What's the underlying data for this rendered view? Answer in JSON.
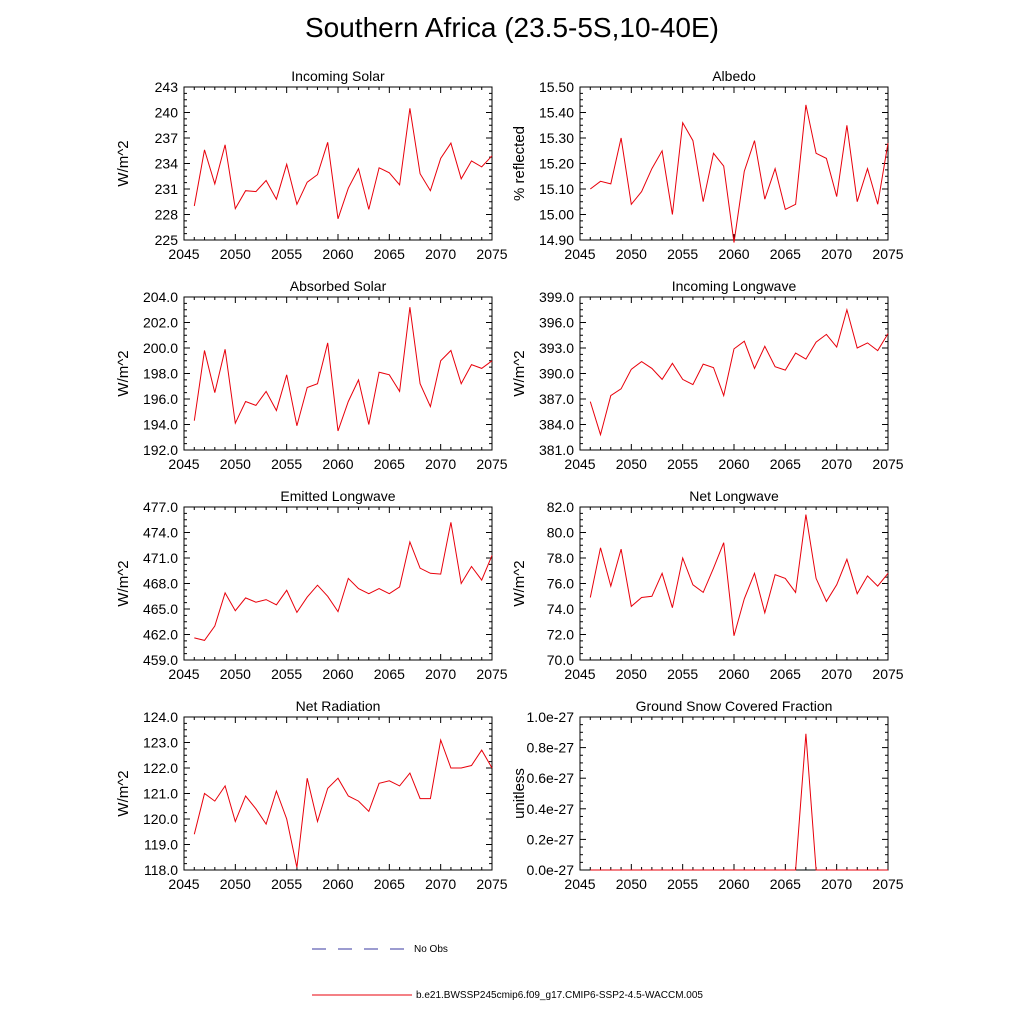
{
  "title": "Southern Africa (23.5-5S,10-40E)",
  "colors": {
    "model": "#e8000b",
    "obs": "#3a3aa0",
    "axis": "#000000"
  },
  "legend": {
    "obs_label": "No Obs",
    "model_label": "b.e21.BWSSP245cmip6.f09_g17.CMIP6-SSP2-4.5-WACCM.005"
  },
  "chart_data": [
    {
      "type": "line",
      "title": "Incoming Solar",
      "xlabel": "",
      "ylabel": "W/m^2",
      "xlim": [
        2045,
        2075
      ],
      "xticks": [
        2045,
        2050,
        2055,
        2060,
        2065,
        2070,
        2075
      ],
      "ylim": [
        225,
        243
      ],
      "yticks": [
        225,
        228,
        231,
        234,
        237,
        240,
        243
      ],
      "ydecimals": 0,
      "x": [
        2046,
        2047,
        2048,
        2049,
        2050,
        2051,
        2052,
        2053,
        2054,
        2055,
        2056,
        2057,
        2058,
        2059,
        2060,
        2061,
        2062,
        2063,
        2064,
        2065,
        2066,
        2067,
        2068,
        2069,
        2070,
        2071,
        2072,
        2073,
        2074,
        2075
      ],
      "series": [
        {
          "name": "b.e21.BWSSP245cmip6.f09_g17.CMIP6-SSP2-4.5-WACCM.005",
          "values": [
            229.0,
            235.6,
            231.6,
            236.2,
            228.7,
            230.8,
            230.7,
            232.0,
            229.8,
            233.9,
            229.2,
            231.8,
            232.7,
            236.5,
            227.5,
            231.1,
            233.4,
            228.6,
            233.5,
            232.9,
            231.5,
            240.5,
            232.8,
            230.8,
            234.6,
            236.4,
            232.2,
            234.3,
            233.6,
            234.9
          ]
        }
      ]
    },
    {
      "type": "line",
      "title": "Albedo",
      "xlabel": "",
      "ylabel": "% reflected",
      "xlim": [
        2045,
        2075
      ],
      "xticks": [
        2045,
        2050,
        2055,
        2060,
        2065,
        2070,
        2075
      ],
      "ylim": [
        14.9,
        15.5
      ],
      "yticks": [
        14.9,
        15.0,
        15.1,
        15.2,
        15.3,
        15.4,
        15.5
      ],
      "ydecimals": 2,
      "x": [
        2046,
        2047,
        2048,
        2049,
        2050,
        2051,
        2052,
        2053,
        2054,
        2055,
        2056,
        2057,
        2058,
        2059,
        2060,
        2061,
        2062,
        2063,
        2064,
        2065,
        2066,
        2067,
        2068,
        2069,
        2070,
        2071,
        2072,
        2073,
        2074,
        2075
      ],
      "series": [
        {
          "name": "b.e21.BWSSP245cmip6.f09_g17.CMIP6-SSP2-4.5-WACCM.005",
          "values": [
            15.1,
            15.13,
            15.12,
            15.3,
            15.04,
            15.09,
            15.18,
            15.25,
            15.0,
            15.36,
            15.29,
            15.05,
            15.24,
            15.19,
            14.89,
            15.17,
            15.29,
            15.06,
            15.18,
            15.02,
            15.04,
            15.43,
            15.24,
            15.22,
            15.07,
            15.35,
            15.05,
            15.18,
            15.04,
            15.28
          ]
        }
      ]
    },
    {
      "type": "line",
      "title": "Absorbed Solar",
      "xlabel": "",
      "ylabel": "W/m^2",
      "xlim": [
        2045,
        2075
      ],
      "xticks": [
        2045,
        2050,
        2055,
        2060,
        2065,
        2070,
        2075
      ],
      "ylim": [
        192,
        204
      ],
      "yticks": [
        192,
        194,
        196,
        198,
        200,
        202,
        204
      ],
      "ydecimals": 1,
      "x": [
        2046,
        2047,
        2048,
        2049,
        2050,
        2051,
        2052,
        2053,
        2054,
        2055,
        2056,
        2057,
        2058,
        2059,
        2060,
        2061,
        2062,
        2063,
        2064,
        2065,
        2066,
        2067,
        2068,
        2069,
        2070,
        2071,
        2072,
        2073,
        2074,
        2075
      ],
      "series": [
        {
          "name": "b.e21.BWSSP245cmip6.f09_g17.CMIP6-SSP2-4.5-WACCM.005",
          "values": [
            194.3,
            199.8,
            196.5,
            199.9,
            194.1,
            195.8,
            195.5,
            196.6,
            195.1,
            197.9,
            193.9,
            196.9,
            197.2,
            200.4,
            193.5,
            195.8,
            197.5,
            194.0,
            198.1,
            197.9,
            196.6,
            203.2,
            197.2,
            195.4,
            199.0,
            199.8,
            197.2,
            198.7,
            198.4,
            199.0
          ]
        }
      ]
    },
    {
      "type": "line",
      "title": "Incoming Longwave",
      "xlabel": "",
      "ylabel": "W/m^2",
      "xlim": [
        2045,
        2075
      ],
      "xticks": [
        2045,
        2050,
        2055,
        2060,
        2065,
        2070,
        2075
      ],
      "ylim": [
        381,
        399
      ],
      "yticks": [
        381,
        384,
        387,
        390,
        393,
        396,
        399
      ],
      "ydecimals": 1,
      "x": [
        2046,
        2047,
        2048,
        2049,
        2050,
        2051,
        2052,
        2053,
        2054,
        2055,
        2056,
        2057,
        2058,
        2059,
        2060,
        2061,
        2062,
        2063,
        2064,
        2065,
        2066,
        2067,
        2068,
        2069,
        2070,
        2071,
        2072,
        2073,
        2074,
        2075
      ],
      "series": [
        {
          "name": "b.e21.BWSSP245cmip6.f09_g17.CMIP6-SSP2-4.5-WACCM.005",
          "values": [
            386.7,
            382.8,
            387.4,
            388.2,
            390.5,
            391.4,
            390.6,
            389.3,
            391.2,
            389.3,
            388.7,
            391.1,
            390.7,
            387.4,
            392.9,
            393.8,
            390.6,
            393.2,
            390.8,
            390.4,
            392.4,
            391.7,
            393.7,
            394.6,
            393.1,
            397.5,
            393.0,
            393.6,
            392.7,
            394.7
          ]
        }
      ]
    },
    {
      "type": "line",
      "title": "Emitted Longwave",
      "xlabel": "",
      "ylabel": "W/m^2",
      "xlim": [
        2045,
        2075
      ],
      "xticks": [
        2045,
        2050,
        2055,
        2060,
        2065,
        2070,
        2075
      ],
      "ylim": [
        459,
        477
      ],
      "yticks": [
        459,
        462,
        465,
        468,
        471,
        474,
        477
      ],
      "ydecimals": 1,
      "x": [
        2046,
        2047,
        2048,
        2049,
        2050,
        2051,
        2052,
        2053,
        2054,
        2055,
        2056,
        2057,
        2058,
        2059,
        2060,
        2061,
        2062,
        2063,
        2064,
        2065,
        2066,
        2067,
        2068,
        2069,
        2070,
        2071,
        2072,
        2073,
        2074,
        2075
      ],
      "series": [
        {
          "name": "b.e21.BWSSP245cmip6.f09_g17.CMIP6-SSP2-4.5-WACCM.005",
          "values": [
            461.6,
            461.3,
            463.0,
            466.9,
            464.8,
            466.3,
            465.8,
            466.1,
            465.5,
            467.2,
            464.6,
            466.4,
            467.8,
            466.5,
            464.7,
            468.6,
            467.4,
            466.8,
            467.4,
            466.8,
            467.6,
            472.9,
            469.8,
            469.2,
            469.1,
            475.2,
            468.0,
            470.0,
            468.4,
            471.3
          ]
        }
      ]
    },
    {
      "type": "line",
      "title": "Net Longwave",
      "xlabel": "",
      "ylabel": "W/m^2",
      "xlim": [
        2045,
        2075
      ],
      "xticks": [
        2045,
        2050,
        2055,
        2060,
        2065,
        2070,
        2075
      ],
      "ylim": [
        70,
        82
      ],
      "yticks": [
        70,
        72,
        74,
        76,
        78,
        80,
        82
      ],
      "ydecimals": 1,
      "x": [
        2046,
        2047,
        2048,
        2049,
        2050,
        2051,
        2052,
        2053,
        2054,
        2055,
        2056,
        2057,
        2058,
        2059,
        2060,
        2061,
        2062,
        2063,
        2064,
        2065,
        2066,
        2067,
        2068,
        2069,
        2070,
        2071,
        2072,
        2073,
        2074,
        2075
      ],
      "series": [
        {
          "name": "b.e21.BWSSP245cmip6.f09_g17.CMIP6-SSP2-4.5-WACCM.005",
          "values": [
            74.9,
            78.8,
            75.8,
            78.7,
            74.2,
            74.9,
            75.0,
            76.8,
            74.1,
            78.0,
            75.9,
            75.3,
            77.2,
            79.2,
            71.9,
            74.8,
            76.8,
            73.7,
            76.7,
            76.4,
            75.3,
            81.4,
            76.4,
            74.6,
            75.9,
            77.9,
            75.2,
            76.6,
            75.8,
            76.8
          ]
        }
      ]
    },
    {
      "type": "line",
      "title": "Net Radiation",
      "xlabel": "",
      "ylabel": "W/m^2",
      "xlim": [
        2045,
        2075
      ],
      "xticks": [
        2045,
        2050,
        2055,
        2060,
        2065,
        2070,
        2075
      ],
      "ylim": [
        118,
        124
      ],
      "yticks": [
        118,
        119,
        120,
        121,
        122,
        123,
        124
      ],
      "ydecimals": 1,
      "x": [
        2046,
        2047,
        2048,
        2049,
        2050,
        2051,
        2052,
        2053,
        2054,
        2055,
        2056,
        2057,
        2058,
        2059,
        2060,
        2061,
        2062,
        2063,
        2064,
        2065,
        2066,
        2067,
        2068,
        2069,
        2070,
        2071,
        2072,
        2073,
        2074,
        2075
      ],
      "series": [
        {
          "name": "b.e21.BWSSP245cmip6.f09_g17.CMIP6-SSP2-4.5-WACCM.005",
          "values": [
            119.4,
            121.0,
            120.7,
            121.3,
            119.9,
            120.9,
            120.4,
            119.8,
            121.1,
            120.0,
            118.1,
            121.6,
            119.9,
            121.2,
            121.6,
            120.9,
            120.7,
            120.3,
            121.4,
            121.5,
            121.3,
            121.8,
            120.8,
            120.8,
            123.1,
            122.0,
            122.0,
            122.1,
            122.7,
            122.0
          ]
        }
      ]
    },
    {
      "type": "line",
      "title": "Ground Snow Covered Fraction",
      "xlabel": "",
      "ylabel": "unitless",
      "xlim": [
        2045,
        2075
      ],
      "xticks": [
        2045,
        2050,
        2055,
        2060,
        2065,
        2070,
        2075
      ],
      "ylim": [
        0,
        1e-27
      ],
      "yticks": [
        0,
        2e-28,
        4e-28,
        6e-28,
        8e-28,
        1e-27
      ],
      "ytick_labels": [
        "0.0e-27",
        "0.2e-27",
        "0.4e-27",
        "0.6e-27",
        "0.8e-27",
        "1.0e-27"
      ],
      "x": [
        2046,
        2047,
        2048,
        2049,
        2050,
        2051,
        2052,
        2053,
        2054,
        2055,
        2056,
        2057,
        2058,
        2059,
        2060,
        2061,
        2062,
        2063,
        2064,
        2065,
        2066,
        2067,
        2068,
        2069,
        2070,
        2071,
        2072,
        2073,
        2074,
        2075
      ],
      "series": [
        {
          "name": "b.e21.BWSSP245cmip6.f09_g17.CMIP6-SSP2-4.5-WACCM.005",
          "values": [
            0,
            0,
            0,
            0,
            0,
            0,
            0,
            0,
            0,
            0,
            0,
            0,
            0,
            0,
            0,
            0,
            0,
            0,
            0,
            0,
            0,
            8.9e-28,
            0,
            0,
            0,
            0,
            0,
            0,
            0,
            0
          ]
        }
      ]
    }
  ]
}
